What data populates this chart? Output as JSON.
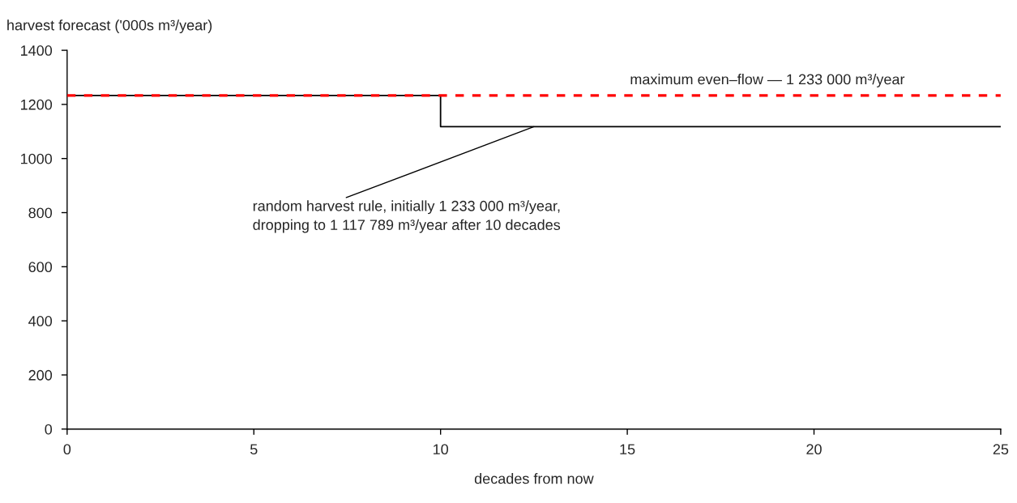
{
  "chart_data": {
    "type": "step",
    "xlabel": "decades from now",
    "ylabel": "harvest forecast ('000s m³/year)",
    "series": [
      {
        "color": "#000000",
        "x": [
          0,
          10,
          25
        ],
        "values": [
          1233,
          1117.789,
          1117.789
        ]
      }
    ],
    "xlim": [
      0,
      25
    ],
    "xticks": [
      0,
      5,
      10,
      15,
      20,
      25
    ],
    "ylim": [
      0,
      1400
    ],
    "yticks": [
      0,
      200,
      400,
      600,
      800,
      1000,
      1200,
      1400
    ],
    "ref_lines": [
      {
        "axis": "y",
        "value": 1233,
        "label": "maximum even–flow — 1 233 000 m³/year",
        "color": "#ff0000",
        "line_style": "dashed"
      }
    ],
    "annotations": [
      {
        "text": "random harvest rule, initially 1 233 000 m³/year,\ndropping to 1 117 789 m³/year after 10 decades",
        "x": 12.5,
        "y": 1117.789
      }
    ],
    "grid": false,
    "legend": false,
    "marker": "none",
    "line_style": "solid"
  }
}
